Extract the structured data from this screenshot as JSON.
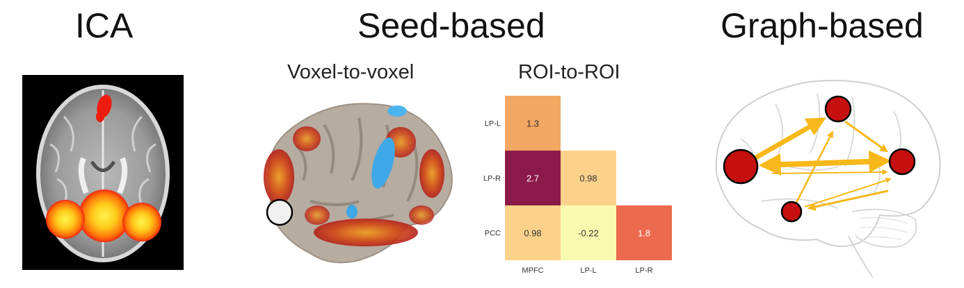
{
  "panels": {
    "ica": {
      "title": "ICA"
    },
    "seed": {
      "title": "Seed-based",
      "voxel_subtitle": "Voxel-to-voxel",
      "roi_subtitle": "ROI-to-ROI"
    },
    "graph": {
      "title": "Graph-based"
    }
  },
  "chart_data": {
    "type": "heatmap",
    "x_categories": [
      "MPFC",
      "LP-L",
      "LP-R"
    ],
    "y_categories": [
      "LP-L",
      "LP-R",
      "PCC"
    ],
    "cells": [
      {
        "row": "LP-L",
        "col": "MPFC",
        "value": 1.3,
        "label": "1.3"
      },
      {
        "row": "LP-R",
        "col": "MPFC",
        "value": 2.7,
        "label": "2.7"
      },
      {
        "row": "LP-R",
        "col": "LP-L",
        "value": 0.98,
        "label": "0.98"
      },
      {
        "row": "PCC",
        "col": "MPFC",
        "value": 0.98,
        "label": "0.98"
      },
      {
        "row": "PCC",
        "col": "LP-L",
        "value": -0.22,
        "label": "-0.22"
      },
      {
        "row": "PCC",
        "col": "LP-R",
        "value": 1.8,
        "label": "1.8"
      }
    ],
    "colors": {
      "1.3": "#f4a663",
      "2.7": "#8b1a4a",
      "0.98": "#fcd28b",
      "-0.22": "#fafaaf",
      "1.8": "#ec6a4d"
    }
  }
}
